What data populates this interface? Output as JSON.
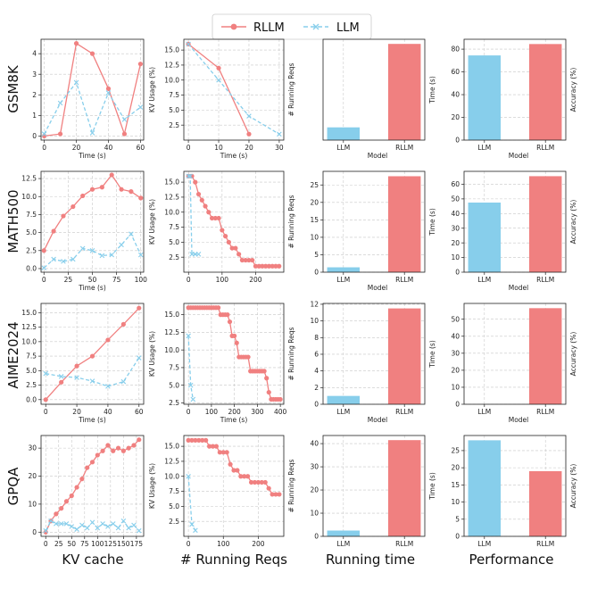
{
  "legend": {
    "rllm_label": "RLLM",
    "llm_label": "LLM",
    "colors": {
      "rllm": "#f08080",
      "llm": "#87ceeb"
    }
  },
  "column_labels": [
    "KV cache",
    "# Running Reqs",
    "Running time",
    "Performance"
  ],
  "row_labels": [
    "GSM8K",
    "MATH500",
    "AIME2024",
    "GPQA"
  ],
  "chart_data": [
    {
      "row": "GSM8K",
      "col": 0,
      "type": "line",
      "xlabel": "Time (s)",
      "ylabel": "",
      "xlim": [
        -2,
        62
      ],
      "ylim": [
        -0.2,
        4.7
      ],
      "xticks": [
        0,
        20,
        40,
        60
      ],
      "yticks": [
        0,
        1,
        2,
        3,
        4
      ],
      "series": [
        {
          "name": "RLLM",
          "x": [
            0,
            10,
            20,
            30,
            40,
            50,
            60
          ],
          "y": [
            0,
            0.1,
            4.5,
            4.0,
            2.3,
            0.1,
            3.5
          ]
        },
        {
          "name": "LLM",
          "x": [
            0,
            10,
            20,
            30,
            40,
            50,
            60
          ],
          "y": [
            0.1,
            1.6,
            2.6,
            0.15,
            2.1,
            0.8,
            1.4
          ]
        }
      ]
    },
    {
      "row": "GSM8K",
      "col": 1,
      "type": "line",
      "xlabel": "Time (s)",
      "ylabel": "KV Usage (%)",
      "xlim": [
        -1.5,
        31.5
      ],
      "ylim": [
        0,
        16.8
      ],
      "xticks": [
        0,
        10,
        20,
        30
      ],
      "yticks": [
        2.5,
        5.0,
        7.5,
        10.0,
        12.5,
        15.0
      ],
      "tick_labels": [
        "2.5",
        "5.0",
        "7.5",
        "10.0",
        "12.5",
        "15.0"
      ],
      "series": [
        {
          "name": "RLLM",
          "x": [
            0,
            10,
            20
          ],
          "y": [
            16,
            12,
            1
          ]
        },
        {
          "name": "LLM",
          "x": [
            0,
            10,
            20,
            30
          ],
          "y": [
            16,
            10,
            4,
            1
          ]
        }
      ]
    },
    {
      "row": "GSM8K",
      "col": 2,
      "type": "bar",
      "xlabel": "Model",
      "ylabel": "# Running Reqs",
      "categories": [
        "LLM",
        "RLLM"
      ],
      "values": [
        1.1,
        8.3
      ],
      "ylim": [
        0,
        8.7
      ],
      "yticks": [],
      "tick_labels": []
    },
    {
      "row": "GSM8K",
      "col": 3,
      "type": "bar",
      "xlabel": "Model",
      "ylabel": "Time (s)",
      "ylabel_right": "Accuracy (%)",
      "categories": [
        "LLM",
        "RLLM"
      ],
      "values": [
        74.5,
        84.5
      ],
      "ylim": [
        0,
        88.7
      ],
      "yticks": [
        0,
        20,
        40,
        60,
        80
      ]
    },
    {
      "row": "MATH500",
      "col": 0,
      "type": "line",
      "xlabel": "Time (s)",
      "ylabel": "",
      "xlim": [
        -3,
        103
      ],
      "ylim": [
        -0.5,
        13.5
      ],
      "xticks": [
        0,
        25,
        50,
        75,
        100
      ],
      "yticks": [
        0,
        2.5,
        5.0,
        7.5,
        10.0,
        12.5
      ],
      "tick_labels": [
        "0.0",
        "2.5",
        "5.0",
        "7.5",
        "10.0",
        "12.5"
      ],
      "series": [
        {
          "name": "RLLM",
          "x": [
            0,
            10,
            20,
            30,
            40,
            50,
            60,
            70,
            80,
            90,
            100
          ],
          "y": [
            2.5,
            5.2,
            7.3,
            8.6,
            10.1,
            11.0,
            11.3,
            13.0,
            11.0,
            10.7,
            9.8
          ]
        },
        {
          "name": "LLM",
          "x": [
            0,
            10,
            20,
            30,
            40,
            50,
            60,
            70,
            80,
            90,
            100
          ],
          "y": [
            0.1,
            1.3,
            1.0,
            1.3,
            2.8,
            2.5,
            1.8,
            1.9,
            3.3,
            4.8,
            1.9
          ]
        }
      ]
    },
    {
      "row": "MATH500",
      "col": 1,
      "type": "line",
      "xlabel": "",
      "ylabel": "KV Usage (%)",
      "xlim": [
        -14,
        284
      ],
      "ylim": [
        0,
        16.8
      ],
      "xticks": [
        0,
        100,
        200
      ],
      "yticks": [
        2.5,
        5.0,
        7.5,
        10.0,
        12.5,
        15.0
      ],
      "tick_labels": [
        "2.5",
        "5.0",
        "7.5",
        "10.0",
        "12.5",
        "15.0"
      ],
      "series": [
        {
          "name": "RLLM",
          "x": [
            0,
            10,
            20,
            30,
            40,
            50,
            60,
            70,
            80,
            90,
            100,
            110,
            120,
            130,
            140,
            150,
            160,
            170,
            180,
            190,
            200,
            210,
            220,
            230,
            240,
            250,
            260,
            270
          ],
          "y": [
            16,
            16,
            15,
            13,
            12,
            11,
            10,
            9,
            9,
            9,
            7,
            6,
            5,
            4,
            4,
            3,
            2,
            2,
            2,
            2,
            1,
            1,
            1,
            1,
            1,
            1,
            1,
            1
          ]
        },
        {
          "name": "LLM",
          "x": [
            0,
            5,
            10,
            20,
            30
          ],
          "y": [
            16,
            16,
            3,
            3,
            3
          ]
        }
      ]
    },
    {
      "row": "MATH500",
      "col": 2,
      "type": "bar",
      "xlabel": "Model",
      "ylabel": "# Running Reqs",
      "categories": [
        "LLM",
        "RLLM"
      ],
      "values": [
        1.4,
        27.5
      ],
      "ylim": [
        0,
        28.9
      ],
      "yticks": [
        0,
        5,
        10,
        15,
        20,
        25
      ]
    },
    {
      "row": "MATH500",
      "col": 3,
      "type": "bar",
      "xlabel": "Model",
      "ylabel": "Time (s)",
      "ylabel_right": "Accuracy (%)",
      "categories": [
        "LLM",
        "RLLM"
      ],
      "values": [
        47.5,
        65.5
      ],
      "ylim": [
        0,
        68.8
      ],
      "yticks": [
        0,
        10,
        20,
        30,
        40,
        50,
        60
      ]
    },
    {
      "row": "AIME2024",
      "col": 0,
      "type": "line",
      "xlabel": "Time (s)",
      "ylabel": "",
      "xlim": [
        -3,
        63
      ],
      "ylim": [
        -0.8,
        16.6
      ],
      "xticks": [
        0,
        20,
        40,
        60
      ],
      "yticks": [
        0,
        2.5,
        5.0,
        7.5,
        10.0,
        12.5,
        15.0
      ],
      "tick_labels": [
        "0.0",
        "2.5",
        "5.0",
        "7.5",
        "10.0",
        "12.5",
        "15.0"
      ],
      "series": [
        {
          "name": "RLLM",
          "x": [
            0,
            10,
            20,
            30,
            40,
            50,
            60
          ],
          "y": [
            0,
            3.0,
            5.8,
            7.5,
            10.3,
            13.0,
            15.8
          ]
        },
        {
          "name": "LLM",
          "x": [
            0,
            10,
            20,
            30,
            40,
            50,
            60
          ],
          "y": [
            4.5,
            4.0,
            3.8,
            3.2,
            2.3,
            3.1,
            7.2
          ]
        }
      ]
    },
    {
      "row": "AIME2024",
      "col": 1,
      "type": "line",
      "xlabel": "Time (s)",
      "ylabel": "KV Usage (%)",
      "xlim": [
        -20,
        415
      ],
      "ylim": [
        2.3,
        16.6
      ],
      "xticks": [
        0,
        100,
        200,
        300,
        400
      ],
      "yticks": [
        2.5,
        5.0,
        7.5,
        10.0,
        12.5,
        15.0
      ],
      "tick_labels": [
        "2.5",
        "5.0",
        "7.5",
        "10.0",
        "12.5",
        "15.0"
      ],
      "series": [
        {
          "name": "RLLM",
          "x": [
            0,
            10,
            20,
            30,
            40,
            50,
            60,
            70,
            80,
            90,
            100,
            110,
            120,
            130,
            140,
            150,
            160,
            170,
            180,
            190,
            200,
            210,
            220,
            230,
            240,
            250,
            260,
            270,
            280,
            290,
            300,
            310,
            320,
            330,
            340,
            350,
            360,
            370,
            380,
            390,
            400
          ],
          "y": [
            16,
            16,
            16,
            16,
            16,
            16,
            16,
            16,
            16,
            16,
            16,
            16,
            16,
            16,
            15,
            15,
            15,
            15,
            14,
            12,
            12,
            11,
            9,
            9,
            9,
            9,
            9,
            7,
            7,
            7,
            7,
            7,
            7,
            7,
            6,
            4,
            3,
            3,
            3,
            3,
            3
          ]
        },
        {
          "name": "LLM",
          "x": [
            0,
            10,
            20
          ],
          "y": [
            12,
            5,
            3
          ]
        }
      ]
    },
    {
      "row": "AIME2024",
      "col": 2,
      "type": "bar",
      "xlabel": "Model",
      "ylabel": "# Running Reqs",
      "categories": [
        "LLM",
        "RLLM"
      ],
      "values": [
        1.0,
        11.5
      ],
      "ylim": [
        0,
        12.1
      ],
      "yticks": [
        0,
        2,
        4,
        6,
        8,
        10,
        12
      ]
    },
    {
      "row": "AIME2024",
      "col": 3,
      "type": "bar",
      "xlabel": "Model",
      "ylabel": "Time (s)",
      "ylabel_right": "Accuracy (%)",
      "categories": [
        "LLM",
        "RLLM"
      ],
      "values": [
        0,
        56.5
      ],
      "ylim": [
        0,
        59.3
      ],
      "yticks": [
        0,
        10,
        20,
        30,
        40,
        50
      ]
    },
    {
      "row": "GPQA",
      "col": 0,
      "type": "line",
      "xlabel": "",
      "ylabel": "",
      "xlim": [
        -9,
        189
      ],
      "ylim": [
        -1.5,
        34.5
      ],
      "xticks": [
        0,
        25,
        50,
        75,
        100,
        125,
        150,
        175
      ],
      "yticks": [
        0,
        10,
        20,
        30
      ],
      "series": [
        {
          "name": "RLLM",
          "x": [
            0,
            10,
            20,
            30,
            40,
            50,
            60,
            70,
            80,
            90,
            100,
            110,
            120,
            130,
            140,
            150,
            160,
            170,
            180
          ],
          "y": [
            0,
            4,
            6.5,
            8.5,
            11,
            13,
            16,
            19,
            23,
            25,
            27.5,
            29,
            31,
            29,
            30,
            29,
            30,
            31,
            33
          ]
        },
        {
          "name": "LLM",
          "x": [
            0,
            10,
            20,
            30,
            40,
            50,
            60,
            70,
            80,
            90,
            100,
            110,
            120,
            130,
            140,
            150,
            160,
            170,
            180
          ],
          "y": [
            0.5,
            4,
            3,
            3,
            3,
            2,
            1,
            2.5,
            1.5,
            3.5,
            1.5,
            3,
            2,
            3,
            1.5,
            4,
            1.5,
            2.5,
            0.5
          ]
        }
      ]
    },
    {
      "row": "GPQA",
      "col": 1,
      "type": "line",
      "xlabel": "",
      "ylabel": "KV Usage (%)",
      "xlim": [
        -13,
        273
      ],
      "ylim": [
        0,
        16.8
      ],
      "xticks": [
        0,
        100,
        200
      ],
      "yticks": [
        2.5,
        5.0,
        7.5,
        10.0,
        12.5,
        15.0
      ],
      "tick_labels": [
        "2.5",
        "5.0",
        "7.5",
        "10.0",
        "12.5",
        "15.0"
      ],
      "series": [
        {
          "name": "RLLM",
          "x": [
            0,
            10,
            20,
            30,
            40,
            50,
            60,
            70,
            80,
            90,
            100,
            110,
            120,
            130,
            140,
            150,
            160,
            170,
            180,
            190,
            200,
            210,
            220,
            230,
            240,
            250,
            260
          ],
          "y": [
            16,
            16,
            16,
            16,
            16,
            16,
            15,
            15,
            15,
            14,
            14,
            14,
            12,
            11,
            11,
            10,
            10,
            10,
            9,
            9,
            9,
            9,
            9,
            8,
            7,
            7,
            7
          ]
        },
        {
          "name": "LLM",
          "x": [
            0,
            10,
            20
          ],
          "y": [
            10,
            2,
            1
          ]
        }
      ]
    },
    {
      "row": "GPQA",
      "col": 2,
      "type": "bar",
      "xlabel": "",
      "ylabel": "# Running Reqs",
      "categories": [
        "LLM",
        "RLLM"
      ],
      "values": [
        2.5,
        41.5
      ],
      "ylim": [
        0,
        43.5
      ],
      "yticks": [
        0,
        10,
        20,
        30,
        40
      ]
    },
    {
      "row": "GPQA",
      "col": 3,
      "type": "bar",
      "xlabel": "",
      "ylabel": "Time (s)",
      "ylabel_right": "Accuracy (%)",
      "categories": [
        "LLM",
        "RLLM"
      ],
      "values": [
        28.0,
        19.0
      ],
      "ylim": [
        0,
        29.4
      ],
      "yticks": [
        0,
        5,
        10,
        15,
        20,
        25
      ]
    }
  ]
}
